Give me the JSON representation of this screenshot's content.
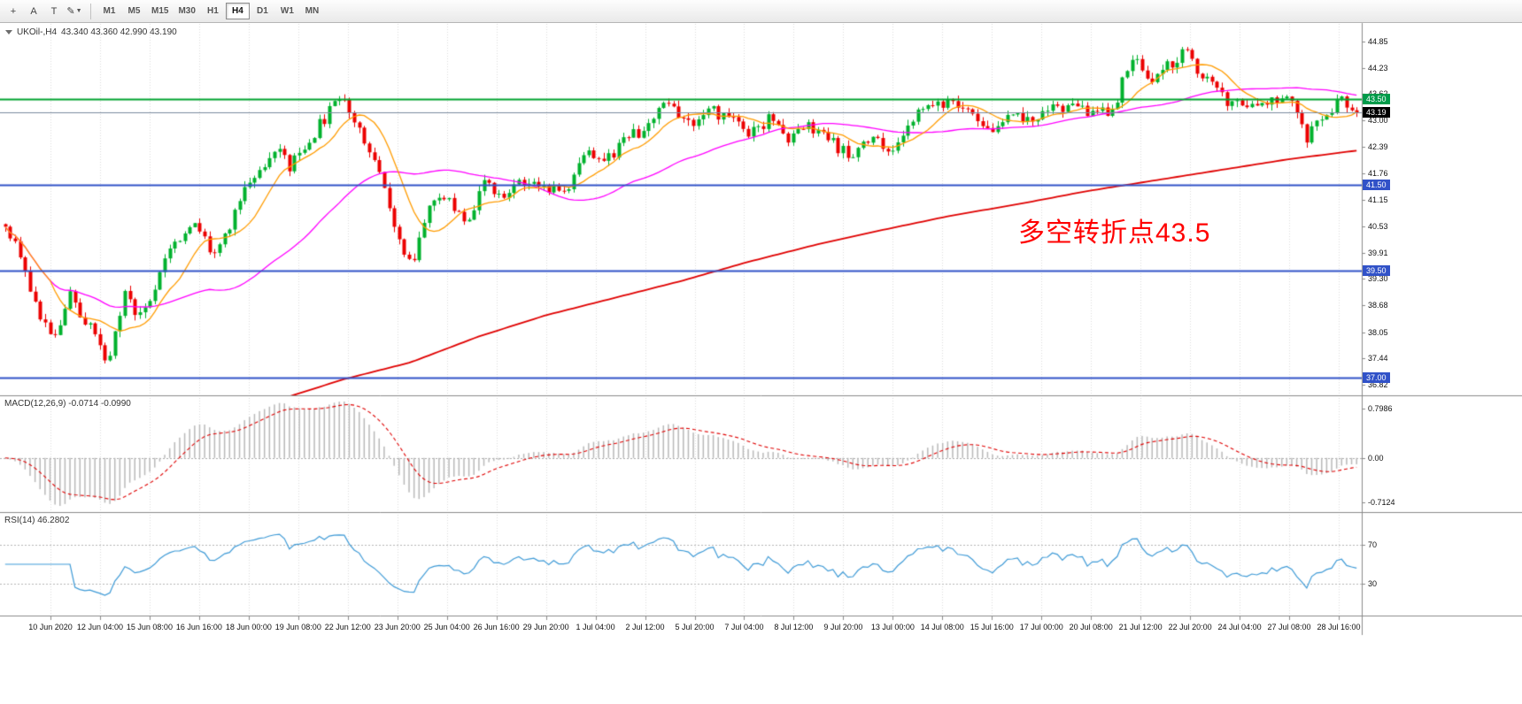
{
  "toolbar": {
    "left_buttons": [
      {
        "name": "cursor-tool",
        "glyph": "+"
      },
      {
        "name": "text-tool",
        "glyph": "A"
      },
      {
        "name": "shapes-tool",
        "glyph": "T"
      },
      {
        "name": "draw-tool",
        "glyph": "✎"
      }
    ],
    "timeframes": [
      "M1",
      "M5",
      "M15",
      "M30",
      "H1",
      "H4",
      "D1",
      "W1",
      "MN"
    ],
    "selected_timeframe": "H4"
  },
  "chart": {
    "symbol": "UKOil-,H4",
    "ohlc": "43.340 43.360 42.990 43.190",
    "annotation": {
      "text": "多空转折点43.5",
      "color": "#ff0000"
    },
    "price_axis": [
      "44.85",
      "44.23",
      "43.62",
      "43.00",
      "42.39",
      "41.76",
      "41.15",
      "40.53",
      "39.91",
      "39.30",
      "38.68",
      "38.05",
      "37.44",
      "36.82"
    ],
    "badges": [
      {
        "label": "43.50",
        "price": 43.5,
        "bg": "#009b4a"
      },
      {
        "label": "43.19",
        "price": 43.19,
        "bg": "#000000"
      },
      {
        "label": "41.50",
        "price": 41.5,
        "bg": "#3152c8"
      },
      {
        "label": "39.50",
        "price": 39.5,
        "bg": "#3152c8"
      },
      {
        "label": "37.00",
        "price": 37.0,
        "bg": "#3152c8"
      }
    ],
    "hlines": [
      {
        "price": 43.5,
        "color": "#00a32e",
        "width": 2
      },
      {
        "price": 43.19,
        "color": "#7c8ca0",
        "width": 1
      },
      {
        "price": 41.5,
        "color": "#3152c8",
        "width": 2
      },
      {
        "price": 39.5,
        "color": "#3152c8",
        "width": 2
      },
      {
        "price": 37.0,
        "color": "#3152c8",
        "width": 2
      }
    ],
    "time_axis": [
      "10 Jun 2020",
      "12 Jun 04:00",
      "15 Jun 08:00",
      "16 Jun 16:00",
      "18 Jun 00:00",
      "19 Jun 08:00",
      "22 Jun 12:00",
      "23 Jun 20:00",
      "25 Jun 04:00",
      "26 Jun 16:00",
      "29 Jun 20:00",
      "1 Jul 04:00",
      "2 Jul 12:00",
      "5 Jul 20:00",
      "7 Jul 04:00",
      "8 Jul 12:00",
      "9 Jul 20:00",
      "13 Jul 00:00",
      "14 Jul 08:00",
      "15 Jul 16:00",
      "17 Jul 00:00",
      "20 Jul 08:00",
      "21 Jul 12:00",
      "22 Jul 20:00",
      "24 Jul 04:00",
      "27 Jul 08:00",
      "28 Jul 16:00"
    ]
  },
  "macd": {
    "label": "MACD(12,26,9) -0.0714 -0.0990",
    "axis_top": "0.7986",
    "axis_zero": "0.00",
    "axis_bottom": "-0.7124"
  },
  "rsi": {
    "label": "RSI(14) 46.2802",
    "level_labels": [
      "70",
      "30"
    ],
    "levels": [
      70,
      30
    ]
  },
  "chart_data": {
    "type": "candlestick+indicators",
    "symbol": "UKOil-,H4",
    "bars": 272,
    "last_close": 43.19,
    "price_range": [
      36.6,
      45.2
    ],
    "noise_amplitude": 0.16,
    "seed": 42,
    "price_path": [
      [
        0,
        40.6
      ],
      [
        0.01,
        40.0
      ],
      [
        0.022,
        38.8
      ],
      [
        0.035,
        37.7
      ],
      [
        0.048,
        38.9
      ],
      [
        0.06,
        38.3
      ],
      [
        0.075,
        37.3
      ],
      [
        0.088,
        38.9
      ],
      [
        0.1,
        38.4
      ],
      [
        0.112,
        39.3
      ],
      [
        0.125,
        40.1
      ],
      [
        0.14,
        40.55
      ],
      [
        0.152,
        39.9
      ],
      [
        0.165,
        40.5
      ],
      [
        0.18,
        41.55
      ],
      [
        0.19,
        42.0
      ],
      [
        0.2,
        42.35
      ],
      [
        0.21,
        41.9
      ],
      [
        0.222,
        42.4
      ],
      [
        0.235,
        43.0
      ],
      [
        0.248,
        43.55
      ],
      [
        0.258,
        43.1
      ],
      [
        0.27,
        42.3
      ],
      [
        0.282,
        41.3
      ],
      [
        0.295,
        39.75
      ],
      [
        0.302,
        39.6
      ],
      [
        0.315,
        41.3
      ],
      [
        0.328,
        41.05
      ],
      [
        0.34,
        40.65
      ],
      [
        0.355,
        41.5
      ],
      [
        0.37,
        41.25
      ],
      [
        0.385,
        41.6
      ],
      [
        0.4,
        41.5
      ],
      [
        0.415,
        41.35
      ],
      [
        0.43,
        42.3
      ],
      [
        0.445,
        42.05
      ],
      [
        0.46,
        42.55
      ],
      [
        0.475,
        42.9
      ],
      [
        0.49,
        43.35
      ],
      [
        0.505,
        42.95
      ],
      [
        0.52,
        43.2
      ],
      [
        0.535,
        43.15
      ],
      [
        0.55,
        42.7
      ],
      [
        0.565,
        43.05
      ],
      [
        0.58,
        42.45
      ],
      [
        0.595,
        42.9
      ],
      [
        0.61,
        42.6
      ],
      [
        0.625,
        42.1
      ],
      [
        0.64,
        42.7
      ],
      [
        0.655,
        42.35
      ],
      [
        0.67,
        42.95
      ],
      [
        0.685,
        43.4
      ],
      [
        0.7,
        43.35
      ],
      [
        0.715,
        43.15
      ],
      [
        0.73,
        42.85
      ],
      [
        0.745,
        43.1
      ],
      [
        0.76,
        43.0
      ],
      [
        0.775,
        43.3
      ],
      [
        0.79,
        43.25
      ],
      [
        0.805,
        43.2
      ],
      [
        0.82,
        43.3
      ],
      [
        0.833,
        44.5
      ],
      [
        0.845,
        43.95
      ],
      [
        0.858,
        44.2
      ],
      [
        0.872,
        44.6
      ],
      [
        0.885,
        44.1
      ],
      [
        0.898,
        43.6
      ],
      [
        0.91,
        43.35
      ],
      [
        0.925,
        43.25
      ],
      [
        0.94,
        43.5
      ],
      [
        0.953,
        43.55
      ],
      [
        0.963,
        42.6
      ],
      [
        0.975,
        43.15
      ],
      [
        0.987,
        43.45
      ],
      [
        1,
        43.19
      ]
    ],
    "red_ma_path": [
      [
        0,
        35.1
      ],
      [
        0.1,
        35.8
      ],
      [
        0.2,
        36.45
      ],
      [
        0.25,
        36.95
      ],
      [
        0.3,
        37.35
      ],
      [
        0.35,
        37.95
      ],
      [
        0.4,
        38.45
      ],
      [
        0.45,
        38.85
      ],
      [
        0.5,
        39.25
      ],
      [
        0.55,
        39.7
      ],
      [
        0.6,
        40.1
      ],
      [
        0.65,
        40.45
      ],
      [
        0.7,
        40.78
      ],
      [
        0.75,
        41.05
      ],
      [
        0.8,
        41.35
      ],
      [
        0.85,
        41.6
      ],
      [
        0.9,
        41.85
      ],
      [
        0.95,
        42.1
      ],
      [
        1,
        42.3
      ]
    ],
    "ma_periods": {
      "fast": 10,
      "mid": 42
    },
    "macd_params": {
      "fast": 12,
      "slow": 26,
      "signal": 9
    },
    "rsi_period": 14,
    "colors": {
      "up": "#00b22d",
      "down": "#ec0000",
      "ma_fast": "#ff9c00",
      "ma_mid": "#ff00ff",
      "ma_slow": "#e00000",
      "macd_hist": "#b9b9b9",
      "macd_signal": "#e00000",
      "rsi_line": "#3f9bd7",
      "grid": "#dcdcdc",
      "border": "#8a8a8a"
    }
  }
}
